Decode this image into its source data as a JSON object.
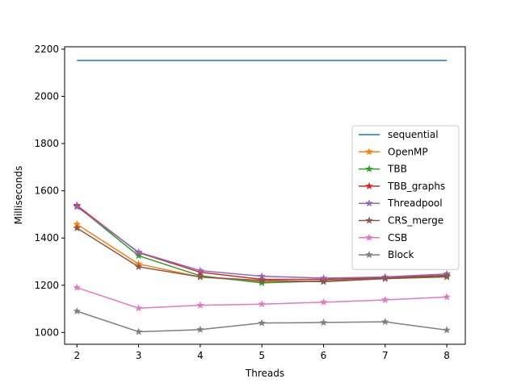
{
  "chart_data": {
    "type": "line",
    "title": "",
    "xlabel": "Threads",
    "ylabel": "Milliseconds",
    "x": [
      2,
      3,
      4,
      5,
      6,
      7,
      8
    ],
    "xlim": [
      1.8,
      8.3
    ],
    "ylim": [
      950,
      2210
    ],
    "xticks": [
      "2",
      "3",
      "4",
      "5",
      "6",
      "7",
      "8"
    ],
    "yticks": [
      "1000",
      "1200",
      "1400",
      "1600",
      "1800",
      "2000",
      "2200"
    ],
    "grid": false,
    "legend_position": "center-right",
    "series": [
      {
        "name": "sequential",
        "color": "#1f77b4",
        "marker": "none",
        "values": [
          2152,
          2152,
          2152,
          2152,
          2152,
          2152,
          2152
        ]
      },
      {
        "name": "OpenMP",
        "color": "#ff7f0e",
        "marker": "star",
        "values": [
          1458,
          1290,
          1235,
          1215,
          1218,
          1230,
          1238
        ]
      },
      {
        "name": "TBB",
        "color": "#2ca02c",
        "marker": "star",
        "values": [
          1535,
          1325,
          1240,
          1210,
          1218,
          1228,
          1235
        ]
      },
      {
        "name": "TBB_graphs",
        "color": "#d62728",
        "marker": "star",
        "values": [
          1538,
          1338,
          1255,
          1225,
          1225,
          1232,
          1242
        ]
      },
      {
        "name": "Threadpool",
        "color": "#9467bd",
        "marker": "star",
        "values": [
          1532,
          1340,
          1262,
          1238,
          1230,
          1235,
          1248
        ]
      },
      {
        "name": "CRS_merge",
        "color": "#8c564b",
        "marker": "star",
        "values": [
          1442,
          1278,
          1235,
          1220,
          1215,
          1228,
          1238
        ]
      },
      {
        "name": "CSB",
        "color": "#e377c2",
        "marker": "star",
        "values": [
          1190,
          1103,
          1115,
          1120,
          1128,
          1138,
          1150
        ]
      },
      {
        "name": "Block",
        "color": "#7f7f7f",
        "marker": "star",
        "values": [
          1090,
          1003,
          1012,
          1040,
          1042,
          1045,
          1010
        ]
      }
    ]
  }
}
